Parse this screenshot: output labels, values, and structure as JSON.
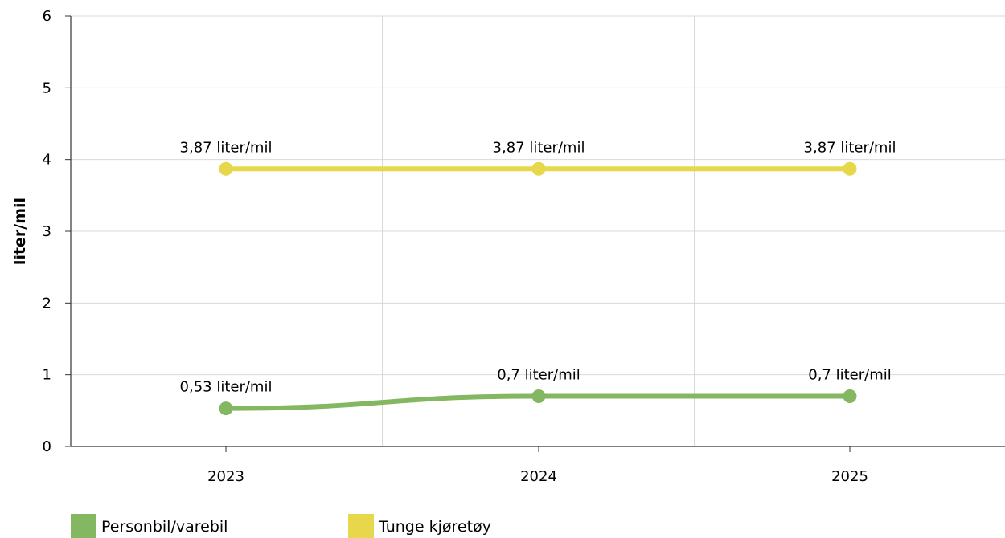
{
  "chart_data": {
    "type": "line",
    "title": "",
    "xlabel": "",
    "ylabel": "liter/mil",
    "x": [
      "2023",
      "2024",
      "2025"
    ],
    "ylim": [
      0,
      6
    ],
    "yticks": [
      "0",
      "1",
      "2",
      "3",
      "4",
      "5",
      "6"
    ],
    "grid": true,
    "legend_position": "bottom-left",
    "series": [
      {
        "name": "Personbil/varebil",
        "color": "#84b761",
        "values": [
          0.53,
          0.7,
          0.7
        ],
        "labels": [
          "0,53 liter/mil",
          "0,7 liter/mil",
          "0,7 liter/mil"
        ]
      },
      {
        "name": "Tunge kjøretøy",
        "color": "#e6d84a",
        "values": [
          3.87,
          3.87,
          3.87
        ],
        "labels": [
          "3,87 liter/mil",
          "3,87 liter/mil",
          "3,87 liter/mil"
        ]
      }
    ]
  }
}
